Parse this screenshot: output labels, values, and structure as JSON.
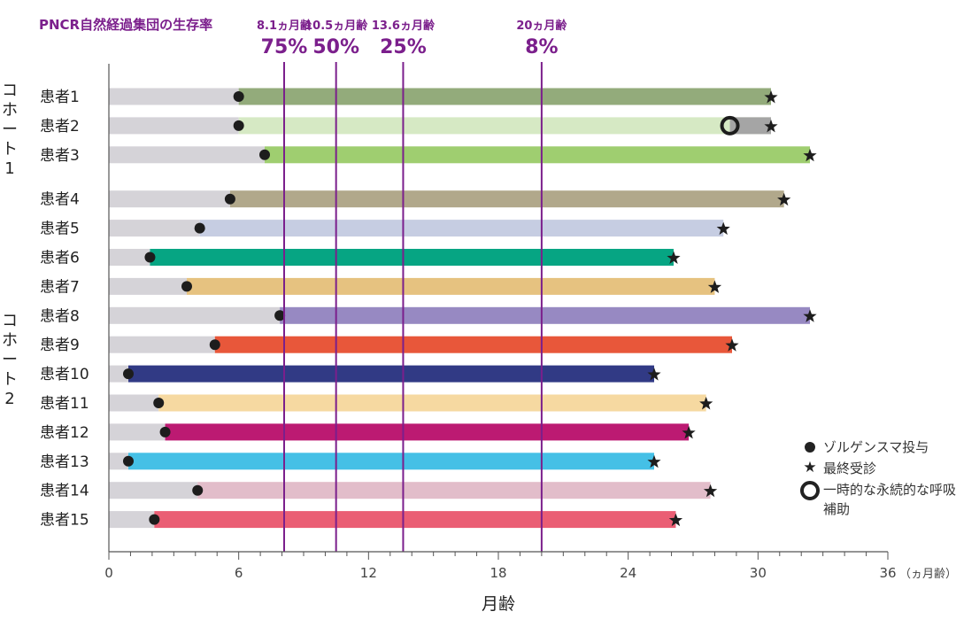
{
  "chart_data": {
    "type": "bar",
    "orientation": "horizontal",
    "title": "",
    "xlabel": "月齢",
    "x_unit_label": "（ヵ月齢）",
    "xlim": [
      0,
      36
    ],
    "xticks": [
      0,
      6,
      12,
      18,
      24,
      30,
      36
    ],
    "tick_labels": [
      "0",
      "6",
      "12",
      "18",
      "24",
      "30",
      "36"
    ],
    "survival_header": "PNCR自然経過集団の生存率",
    "reference_lines": [
      {
        "age_label": "8.1ヵ月齢",
        "x": 8.1,
        "survival": "75%",
        "color": "#7b1f8c"
      },
      {
        "age_label": "10.5ヵ月齢",
        "x": 10.5,
        "survival": "50%",
        "color": "#7b1f8c"
      },
      {
        "age_label": "13.6ヵ月齢",
        "x": 13.6,
        "survival": "25%",
        "color": "#7b1f8c"
      },
      {
        "age_label": "20ヵ月齢",
        "x": 20,
        "survival": "8%",
        "color": "#7b1f8c"
      }
    ],
    "cohorts": [
      {
        "label": "コホート1",
        "chars": [
          "コ",
          "ホ",
          "ー",
          "ト",
          "1"
        ]
      },
      {
        "label": "コホート2",
        "chars": [
          "コ",
          "ホ",
          "ー",
          "ト",
          "2"
        ]
      }
    ],
    "pre_dose_color": "#d5d3d8",
    "patients": [
      {
        "label": "患者1",
        "dose": 6.0,
        "end": 30.6,
        "color": "#93ab7b",
        "cohort": 1
      },
      {
        "label": "患者2",
        "dose": 6.0,
        "end": 30.6,
        "color": "#d6e9c4",
        "cohort": 1,
        "support_start": 28.7,
        "support_color": "#a5a5a5"
      },
      {
        "label": "患者3",
        "dose": 7.2,
        "end": 32.4,
        "color": "#9fce70",
        "cohort": 1
      },
      {
        "label": "患者4",
        "dose": 5.6,
        "end": 31.2,
        "color": "#b1a88b",
        "cohort": 2
      },
      {
        "label": "患者5",
        "dose": 4.2,
        "end": 28.4,
        "color": "#c6cde2",
        "cohort": 2
      },
      {
        "label": "患者6",
        "dose": 1.9,
        "end": 26.1,
        "color": "#06a583",
        "cohort": 2
      },
      {
        "label": "患者7",
        "dose": 3.6,
        "end": 28.0,
        "color": "#e6c280",
        "cohort": 2
      },
      {
        "label": "患者8",
        "dose": 7.9,
        "end": 32.4,
        "color": "#9789c2",
        "cohort": 2
      },
      {
        "label": "患者9",
        "dose": 4.9,
        "end": 28.8,
        "color": "#e8573a",
        "cohort": 2
      },
      {
        "label": "患者10",
        "dose": 0.9,
        "end": 25.2,
        "color": "#313a85",
        "cohort": 2
      },
      {
        "label": "患者11",
        "dose": 2.3,
        "end": 27.6,
        "color": "#f6d9a1",
        "cohort": 2
      },
      {
        "label": "患者12",
        "dose": 2.6,
        "end": 26.8,
        "color": "#bc1a72",
        "cohort": 2
      },
      {
        "label": "患者13",
        "dose": 0.9,
        "end": 25.2,
        "color": "#45c0e6",
        "cohort": 2
      },
      {
        "label": "患者14",
        "dose": 4.1,
        "end": 27.8,
        "color": "#e2bdca",
        "cohort": 2
      },
      {
        "label": "患者15",
        "dose": 2.1,
        "end": 26.2,
        "color": "#ea5e74",
        "cohort": 2
      }
    ],
    "legend": [
      {
        "symbol": "dot",
        "label": "ゾルゲンスマ投与"
      },
      {
        "symbol": "star",
        "label": "最終受診"
      },
      {
        "symbol": "ring",
        "label": "一時的な永続的な呼吸補助"
      }
    ]
  }
}
